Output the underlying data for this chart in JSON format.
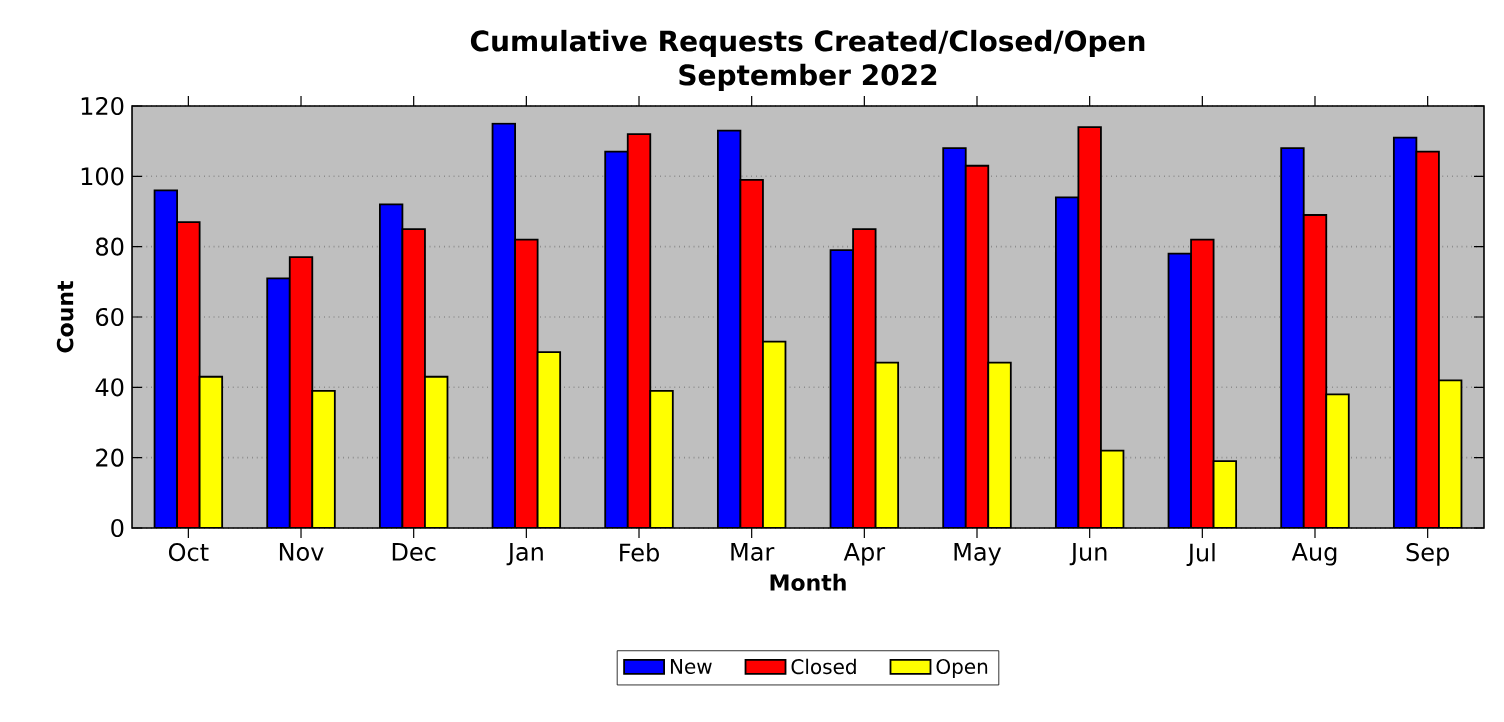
{
  "chart_data": {
    "type": "bar",
    "title": "Cumulative Requests Created/Closed/Open\nSeptember 2022",
    "xlabel": "Month",
    "ylabel": "Count",
    "categories": [
      "Oct",
      "Nov",
      "Dec",
      "Jan",
      "Feb",
      "Mar",
      "Apr",
      "May",
      "Jun",
      "Jul",
      "Aug",
      "Sep"
    ],
    "series": [
      {
        "name": "New",
        "color": "#0000ff",
        "values": [
          96,
          71,
          92,
          115,
          107,
          113,
          79,
          108,
          94,
          78,
          108,
          111
        ]
      },
      {
        "name": "Closed",
        "color": "#ff0000",
        "values": [
          87,
          77,
          85,
          82,
          112,
          99,
          85,
          103,
          114,
          82,
          89,
          107
        ]
      },
      {
        "name": "Open",
        "color": "#ffff00",
        "values": [
          43,
          39,
          43,
          50,
          39,
          53,
          47,
          47,
          22,
          19,
          38,
          42
        ]
      }
    ],
    "ylim": [
      0,
      120
    ],
    "yticks": [
      0,
      20,
      40,
      60,
      80,
      100,
      120
    ],
    "grid": "y",
    "legend": "bottom"
  }
}
